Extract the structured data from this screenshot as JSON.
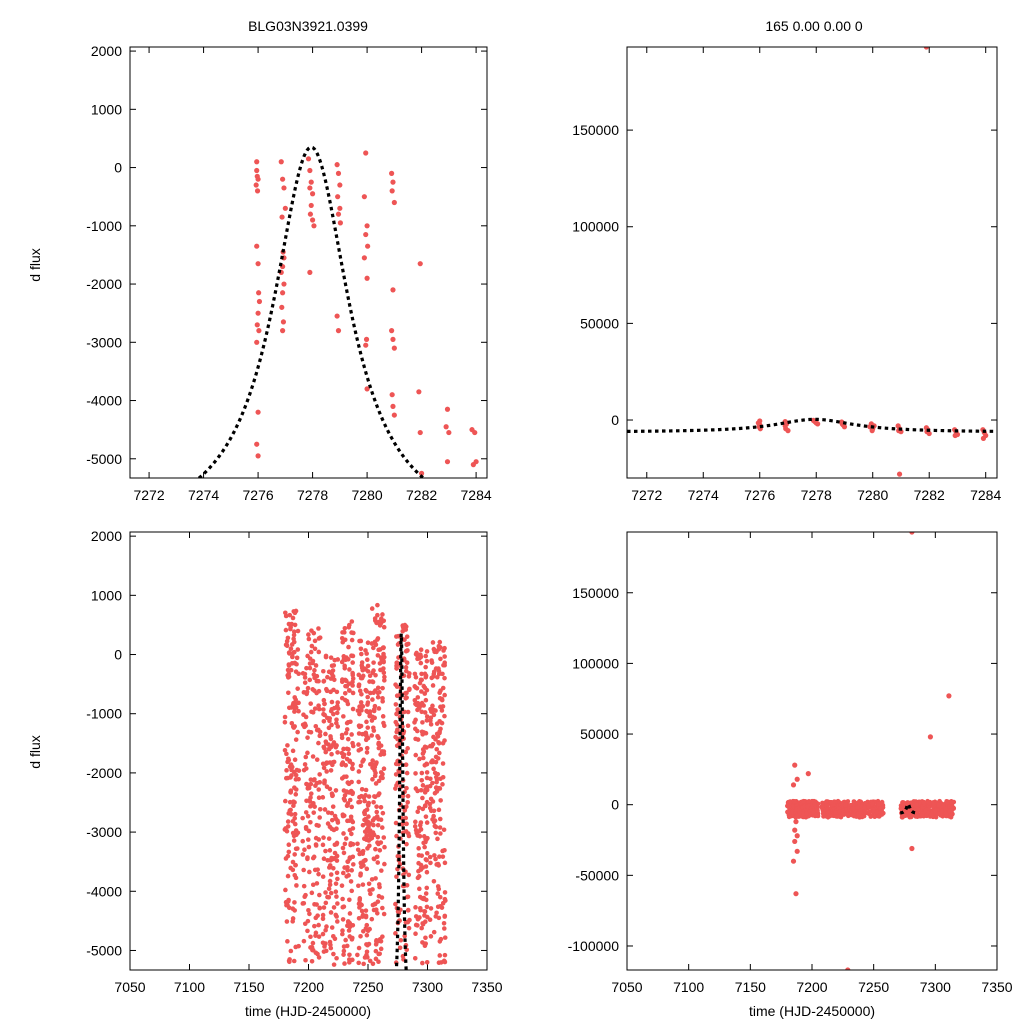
{
  "page": {
    "title_left": "BLG03N3921.0399",
    "title_right": "165  0.00  0.00  0",
    "ylabel": "d flux",
    "xlabel": "time (HJD-2450000)"
  },
  "colors": {
    "points": "#ee5555",
    "model": "#000000"
  },
  "chart_data": [
    {
      "id": "top-left",
      "type": "scatter",
      "title": "BLG03N3921.0399",
      "xlabel": "",
      "ylabel": "d flux",
      "xlim": [
        7271.3,
        7284.4
      ],
      "ylim": [
        -5330,
        2070
      ],
      "xticks": [
        7272,
        7274,
        7276,
        7278,
        7280,
        7282,
        7284
      ],
      "yticks": [
        -5000,
        -4000,
        -3000,
        -2000,
        -1000,
        0,
        1000,
        2000
      ],
      "model": {
        "label": "model",
        "t0": 7277.95,
        "peak": 350,
        "base": -6300,
        "width": 1.7,
        "x_range": [
          7271.3,
          7284.4
        ]
      },
      "series": [
        {
          "name": "data",
          "points": [
            [
              7275.95,
              100
            ],
            [
              7275.95,
              -50
            ],
            [
              7275.97,
              -150
            ],
            [
              7276.0,
              -200
            ],
            [
              7275.93,
              -300
            ],
            [
              7275.98,
              -400
            ],
            [
              7275.95,
              -1350
            ],
            [
              7276.0,
              -1650
            ],
            [
              7276.02,
              -2150
            ],
            [
              7276.05,
              -2300
            ],
            [
              7276.0,
              -2500
            ],
            [
              7275.97,
              -2700
            ],
            [
              7276.03,
              -2800
            ],
            [
              7275.95,
              -3000
            ],
            [
              7276.0,
              -4200
            ],
            [
              7275.95,
              -4750
            ],
            [
              7276.0,
              -4950
            ],
            [
              7276.85,
              100
            ],
            [
              7276.9,
              -200
            ],
            [
              7276.95,
              -350
            ],
            [
              7277.0,
              -700
            ],
            [
              7276.88,
              -850
            ],
            [
              7276.92,
              -1450
            ],
            [
              7276.95,
              -1550
            ],
            [
              7276.9,
              -1700
            ],
            [
              7276.85,
              -1800
            ],
            [
              7276.95,
              -2000
            ],
            [
              7276.9,
              -2150
            ],
            [
              7276.87,
              -2400
            ],
            [
              7276.93,
              -2650
            ],
            [
              7276.9,
              -2800
            ],
            [
              7277.85,
              150
            ],
            [
              7277.9,
              -50
            ],
            [
              7277.95,
              -250
            ],
            [
              7277.9,
              -350
            ],
            [
              7278.0,
              -450
            ],
            [
              7277.95,
              -650
            ],
            [
              7277.92,
              -800
            ],
            [
              7278.0,
              -900
            ],
            [
              7278.05,
              -1000
            ],
            [
              7277.9,
              -1800
            ],
            [
              7278.9,
              50
            ],
            [
              7278.95,
              -100
            ],
            [
              7279.0,
              -300
            ],
            [
              7278.92,
              -500
            ],
            [
              7279.0,
              -700
            ],
            [
              7278.95,
              -800
            ],
            [
              7279.02,
              -950
            ],
            [
              7278.9,
              -2550
            ],
            [
              7278.95,
              -2800
            ],
            [
              7279.95,
              250
            ],
            [
              7279.9,
              -500
            ],
            [
              7280.0,
              -1000
            ],
            [
              7279.95,
              -1150
            ],
            [
              7280.02,
              -1350
            ],
            [
              7279.9,
              -1550
            ],
            [
              7280.0,
              -1900
            ],
            [
              7279.98,
              -2950
            ],
            [
              7279.95,
              -3050
            ],
            [
              7280.0,
              -3800
            ],
            [
              7280.9,
              -100
            ],
            [
              7280.95,
              -250
            ],
            [
              7280.92,
              -400
            ],
            [
              7281.0,
              -600
            ],
            [
              7280.95,
              -2100
            ],
            [
              7280.9,
              -2800
            ],
            [
              7280.95,
              -2950
            ],
            [
              7281.0,
              -3100
            ],
            [
              7280.92,
              -3900
            ],
            [
              7280.95,
              -4100
            ],
            [
              7281.0,
              -4250
            ],
            [
              7281.95,
              -1650
            ],
            [
              7281.9,
              -3850
            ],
            [
              7281.95,
              -4550
            ],
            [
              7282.0,
              -5250
            ],
            [
              7282.95,
              -4150
            ],
            [
              7282.9,
              -4450
            ],
            [
              7283.0,
              -4550
            ],
            [
              7282.95,
              -5050
            ],
            [
              7283.85,
              -4500
            ],
            [
              7283.95,
              -4550
            ],
            [
              7284.0,
              -5050
            ],
            [
              7283.9,
              -5100
            ]
          ]
        }
      ]
    },
    {
      "id": "top-right",
      "type": "scatter",
      "title": "165  0.00  0.00  0",
      "xlabel": "",
      "ylabel": "",
      "xlim": [
        7271.3,
        7284.4
      ],
      "ylim": [
        -30000,
        193000
      ],
      "xticks": [
        7272,
        7274,
        7276,
        7278,
        7280,
        7282,
        7284
      ],
      "yticks": [
        0,
        50000,
        100000,
        150000
      ],
      "model": {
        "label": "model",
        "t0": 7277.95,
        "peak": 350,
        "base": -6300,
        "width": 1.7,
        "x_range": [
          7271.3,
          7284.4
        ]
      },
      "series": [
        {
          "name": "data",
          "points": [
            [
              7276.0,
              -500
            ],
            [
              7275.95,
              -1500
            ],
            [
              7276.0,
              -2500
            ],
            [
              7275.98,
              -3500
            ],
            [
              7276.02,
              -4500
            ],
            [
              7276.9,
              -800
            ],
            [
              7276.95,
              -2000
            ],
            [
              7276.9,
              -3000
            ],
            [
              7276.92,
              -4500
            ],
            [
              7277.0,
              -5500
            ],
            [
              7277.9,
              -200
            ],
            [
              7277.95,
              -800
            ],
            [
              7278.0,
              -1500
            ],
            [
              7278.05,
              -2000
            ],
            [
              7278.9,
              -1000
            ],
            [
              7278.95,
              -2500
            ],
            [
              7279.0,
              -3500
            ],
            [
              7278.92,
              -2000
            ],
            [
              7279.95,
              -2000
            ],
            [
              7279.9,
              -3500
            ],
            [
              7280.0,
              -4500
            ],
            [
              7279.98,
              -5500
            ],
            [
              7280.05,
              -3000
            ],
            [
              7280.9,
              -3000
            ],
            [
              7280.95,
              -4500
            ],
            [
              7281.0,
              -6000
            ],
            [
              7280.92,
              -5500
            ],
            [
              7280.95,
              -28000
            ],
            [
              7281.9,
              -4000
            ],
            [
              7281.95,
              -5000
            ],
            [
              7282.0,
              -7000
            ],
            [
              7281.92,
              -6000
            ],
            [
              7281.9,
              193000
            ],
            [
              7282.9,
              -5000
            ],
            [
              7282.95,
              -6000
            ],
            [
              7283.0,
              -7500
            ],
            [
              7282.92,
              -8000
            ],
            [
              7283.9,
              -5000
            ],
            [
              7283.95,
              -6500
            ],
            [
              7284.0,
              -8000
            ],
            [
              7283.92,
              -9500
            ]
          ]
        }
      ]
    },
    {
      "id": "bottom-left",
      "type": "scatter",
      "title": "",
      "xlabel": "time (HJD-2450000)",
      "ylabel": "d flux",
      "xlim": [
        7050,
        7350
      ],
      "ylim": [
        -5330,
        2070
      ],
      "xticks": [
        7050,
        7100,
        7150,
        7200,
        7250,
        7300,
        7350
      ],
      "yticks": [
        -5000,
        -4000,
        -3000,
        -2000,
        -1000,
        0,
        1000,
        2000
      ],
      "model": {
        "label": "model",
        "t0": 7277.95,
        "peak": 350,
        "base": -6300,
        "width": 1.7,
        "x_range": [
          7270.5,
          7285.5
        ]
      },
      "scatter_bands": {
        "description": "dense nightly observations, many hundreds of points per season",
        "bands": [
          {
            "x": [
              7180,
              7192
            ],
            "y": [
              -5250,
              750
            ]
          },
          {
            "x": [
              7195,
              7210
            ],
            "y": [
              -5250,
              450
            ]
          },
          {
            "x": [
              7212,
              7225
            ],
            "y": [
              -5250,
              100
            ]
          },
          {
            "x": [
              7228,
              7238
            ],
            "y": [
              -5250,
              650
            ]
          },
          {
            "x": [
              7241,
              7252
            ],
            "y": [
              -5250,
              250
            ]
          },
          {
            "x": [
              7253,
              7264
            ],
            "y": [
              -5250,
              850
            ]
          },
          {
            "x": [
              7273,
              7285
            ],
            "y": [
              -5250,
              500
            ]
          },
          {
            "x": [
              7289,
              7300
            ],
            "y": [
              -5250,
              100
            ]
          },
          {
            "x": [
              7302,
              7315
            ],
            "y": [
              -5250,
              250
            ]
          }
        ],
        "count": 1450
      }
    },
    {
      "id": "bottom-right",
      "type": "scatter",
      "title": "",
      "xlabel": "time (HJD-2450000)",
      "ylabel": "",
      "xlim": [
        7050,
        7350
      ],
      "ylim": [
        -117000,
        193000
      ],
      "xticks": [
        7050,
        7100,
        7150,
        7200,
        7250,
        7300,
        7350
      ],
      "yticks": [
        -100000,
        -50000,
        0,
        50000,
        100000,
        150000
      ],
      "model": {
        "label": "model",
        "t0": 7277.95,
        "peak": 350,
        "base": -6300,
        "width": 1.7,
        "x_range": [
          7271.5,
          7284.5
        ],
        "y_scale": 1
      },
      "scatter_bands": {
        "description": "dense nightly observations clustered near zero flux",
        "bands": [
          {
            "x": [
              7180,
              7205
            ],
            "y": [
              -9000,
              2500
            ]
          },
          {
            "x": [
              7208,
              7258
            ],
            "y": [
              -9000,
              2500
            ]
          },
          {
            "x": [
              7272,
              7315
            ],
            "y": [
              -9000,
              2500
            ]
          }
        ],
        "count": 900
      },
      "series": [
        {
          "name": "outliers",
          "points": [
            [
              7186,
              28000
            ],
            [
              7188,
              18000
            ],
            [
              7185,
              14000
            ],
            [
              7187,
              -12000
            ],
            [
              7186,
              -18000
            ],
            [
              7188,
              -22000
            ],
            [
              7186,
              -26000
            ],
            [
              7188,
              -33000
            ],
            [
              7185,
              -40000
            ],
            [
              7187,
              -63000
            ],
            [
              7197,
              22000
            ],
            [
              7229,
              -117000
            ],
            [
              7281,
              193000
            ],
            [
              7281,
              -31000
            ],
            [
              7296,
              48000
            ],
            [
              7311,
              77000
            ]
          ]
        }
      ]
    }
  ]
}
